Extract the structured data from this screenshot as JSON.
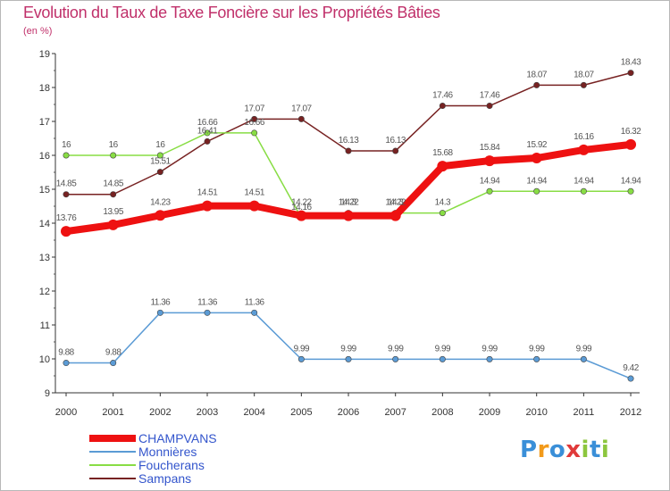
{
  "chart_data": {
    "type": "line",
    "title": "Evolution du Taux de Taxe Foncière sur les Propriétés Bâties",
    "subtitle": "(en %)",
    "xlabel": "",
    "ylabel": "(en %)",
    "ylim": [
      9,
      19
    ],
    "yticks": [
      9,
      10,
      11,
      12,
      13,
      14,
      15,
      16,
      17,
      18,
      19
    ],
    "categories": [
      "2000",
      "2001",
      "2002",
      "2003",
      "2004",
      "2005",
      "2006",
      "2007",
      "2008",
      "2009",
      "2010",
      "2011",
      "2012"
    ],
    "series": [
      {
        "name": "CHAMPVANS",
        "color": "#ee1111",
        "values": [
          13.76,
          13.95,
          14.23,
          14.51,
          14.51,
          14.22,
          14.22,
          14.22,
          15.68,
          15.84,
          15.92,
          16.16,
          16.32
        ],
        "labels": [
          "13.76",
          "13.95",
          "14.23",
          "14.51",
          "14.51",
          "14.22",
          "14.22",
          "14.22",
          "15.68",
          "15.84",
          "15.92",
          "16.16",
          "16.32"
        ]
      },
      {
        "name": "Monnières",
        "color": "#5b9bd5",
        "values": [
          9.88,
          9.88,
          11.36,
          11.36,
          11.36,
          9.99,
          9.99,
          9.99,
          9.99,
          9.99,
          9.99,
          9.99,
          9.42
        ],
        "labels": [
          "9.88",
          "9.88",
          "11.36",
          "11.36",
          "11.36",
          "9.99",
          "9.99",
          "9.99",
          "9.99",
          "9.99",
          "9.99",
          "9.99",
          "9.42"
        ]
      },
      {
        "name": "Foucherans",
        "color": "#88dd44",
        "values": [
          16,
          16,
          16,
          16.66,
          16.66,
          14.16,
          14.3,
          14.3,
          14.3,
          14.94,
          14.94,
          14.94,
          14.94
        ],
        "labels": [
          "16",
          "16",
          "16",
          "16.66",
          "16.66",
          "14.16",
          "14.3",
          "14.3",
          "14.3",
          "14.94",
          "14.94",
          "14.94",
          "14.94"
        ]
      },
      {
        "name": "Sampans",
        "color": "#772222",
        "values": [
          14.85,
          14.85,
          15.51,
          16.41,
          17.07,
          17.07,
          16.13,
          16.13,
          17.46,
          17.46,
          18.07,
          18.07,
          18.43
        ],
        "labels": [
          "14.85",
          "14.85",
          "15.51",
          "16.41",
          "17.07",
          "17.07",
          "16.13",
          "16.13",
          "17.46",
          "17.46",
          "18.07",
          "18.07",
          "18.43"
        ]
      }
    ],
    "legend": "bottom-left",
    "grid": false
  },
  "legend": {
    "items": [
      {
        "name": "CHAMPVANS"
      },
      {
        "name": "Monnières"
      },
      {
        "name": "Foucherans"
      },
      {
        "name": "Sampans"
      }
    ]
  },
  "logo": {
    "text": "Proxiti",
    "letters": [
      "P",
      "r",
      "o",
      "x",
      "i",
      "t",
      "i"
    ],
    "colors": [
      "#3a8fd8",
      "#f29a1a",
      "#3a8fd8",
      "#e03a3a",
      "#8cc63e",
      "#3a8fd8",
      "#8cc63e"
    ]
  }
}
